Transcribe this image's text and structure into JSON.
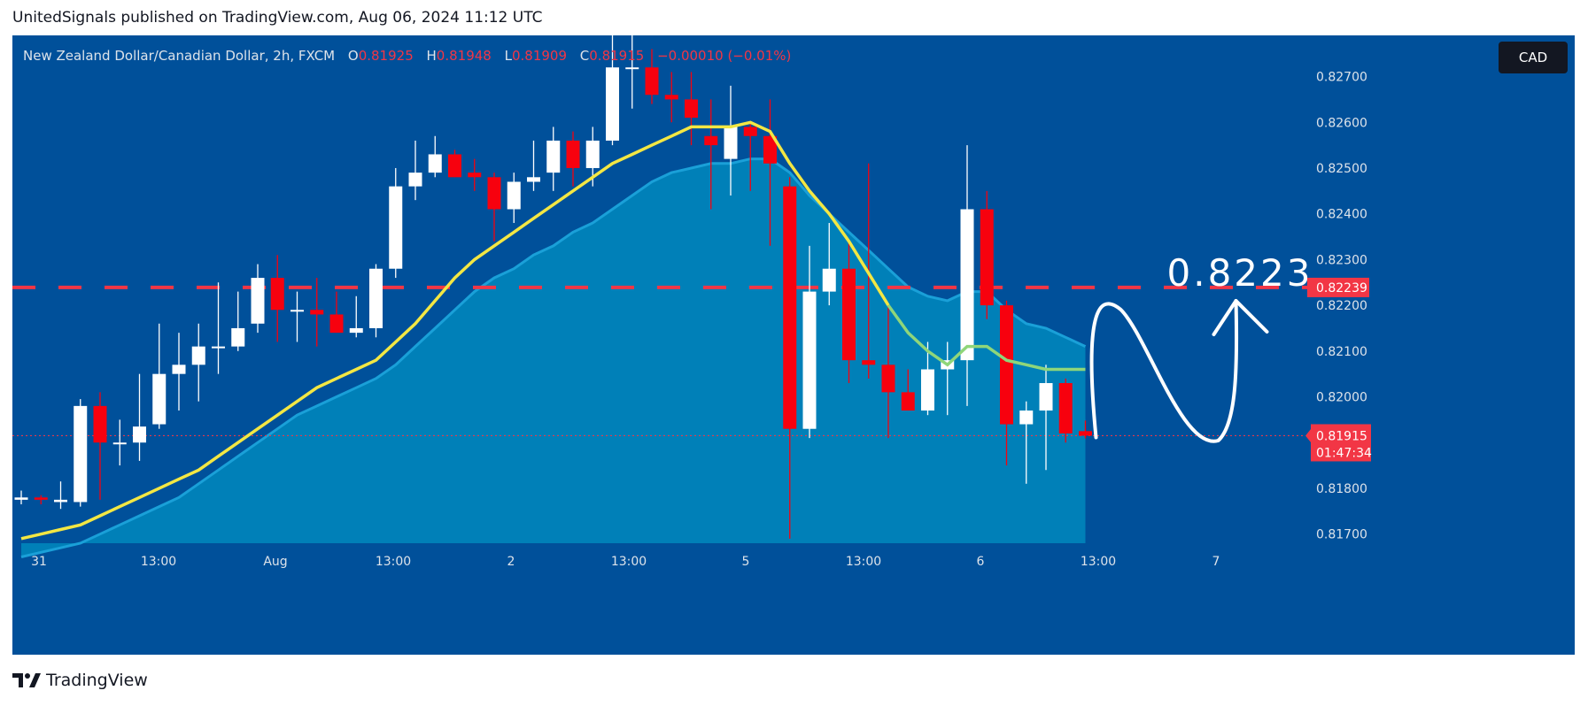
{
  "header": {
    "publisher_line": "UnitedSignals published on TradingView.com, Aug 06, 2024 11:12 UTC"
  },
  "symbol_bar": {
    "name": "New Zealand Dollar/Canadian Dollar, 2h, FXCM",
    "open_label": "O",
    "open": "0.81925",
    "high_label": "H",
    "high": "0.81948",
    "low_label": "L",
    "low": "0.81909",
    "close_label": "C",
    "close": "0.81915",
    "change": "−0.00010 (−0.01%)"
  },
  "currency_badge": "CAD",
  "footer": {
    "brand": "TradingView"
  },
  "colors": {
    "background": "#00509a",
    "up_candle": "#ffffff",
    "down_candle": "#f7010e",
    "ema_fast": "#f3e743",
    "ema_fast_late": "#8fd67a",
    "envelope_fill": "#0083b9",
    "envelope_line": "#1aa0d8",
    "level_line": "#f23645",
    "price_label": "#f23645"
  },
  "chart_data": {
    "type": "candlestick",
    "x_tick_labels": [
      "31",
      "13:00",
      "Aug",
      "13:00",
      "2",
      "13:00",
      "5",
      "13:00",
      "6",
      "13:00",
      "7"
    ],
    "y_tick_labels": [
      "0.82700",
      "0.82600",
      "0.82500",
      "0.82400",
      "0.82300",
      "0.82200",
      "0.82100",
      "0.82000",
      "0.81800",
      "0.81700"
    ],
    "y_ticks": [
      0.827,
      0.826,
      0.825,
      0.824,
      0.823,
      0.822,
      0.821,
      0.82,
      0.818,
      0.817
    ],
    "ylim": [
      0.8168,
      0.8279
    ],
    "level": {
      "value": 0.82239,
      "label": "0.82239"
    },
    "annotation": {
      "text": "0.8223",
      "projection": "down then up toward 0.8223"
    },
    "last_price": {
      "value": 0.81915,
      "label": "0.81915",
      "countdown": "01:47:34"
    },
    "candles": [
      {
        "o": 0.81775,
        "h": 0.81795,
        "l": 0.81765,
        "c": 0.8178
      },
      {
        "o": 0.8178,
        "h": 0.81785,
        "l": 0.81765,
        "c": 0.81775
      },
      {
        "o": 0.8177,
        "h": 0.81815,
        "l": 0.81755,
        "c": 0.81775
      },
      {
        "o": 0.8177,
        "h": 0.81995,
        "l": 0.8176,
        "c": 0.8198
      },
      {
        "o": 0.8198,
        "h": 0.8201,
        "l": 0.81775,
        "c": 0.819
      },
      {
        "o": 0.819,
        "h": 0.8195,
        "l": 0.8185,
        "c": 0.819
      },
      {
        "o": 0.819,
        "h": 0.8205,
        "l": 0.8186,
        "c": 0.81935
      },
      {
        "o": 0.8194,
        "h": 0.8216,
        "l": 0.8193,
        "c": 0.8205
      },
      {
        "o": 0.8205,
        "h": 0.8214,
        "l": 0.8197,
        "c": 0.8207
      },
      {
        "o": 0.8207,
        "h": 0.8216,
        "l": 0.8199,
        "c": 0.8211
      },
      {
        "o": 0.8211,
        "h": 0.8225,
        "l": 0.8205,
        "c": 0.8211
      },
      {
        "o": 0.8211,
        "h": 0.8223,
        "l": 0.821,
        "c": 0.8215
      },
      {
        "o": 0.8216,
        "h": 0.8229,
        "l": 0.8214,
        "c": 0.8226
      },
      {
        "o": 0.8226,
        "h": 0.8231,
        "l": 0.8212,
        "c": 0.8219
      },
      {
        "o": 0.8219,
        "h": 0.8223,
        "l": 0.8212,
        "c": 0.8219
      },
      {
        "o": 0.8219,
        "h": 0.8226,
        "l": 0.8211,
        "c": 0.8218
      },
      {
        "o": 0.8218,
        "h": 0.8223,
        "l": 0.8214,
        "c": 0.8214
      },
      {
        "o": 0.8214,
        "h": 0.8222,
        "l": 0.8213,
        "c": 0.8215
      },
      {
        "o": 0.8215,
        "h": 0.8229,
        "l": 0.8213,
        "c": 0.8228
      },
      {
        "o": 0.8228,
        "h": 0.825,
        "l": 0.8226,
        "c": 0.8246
      },
      {
        "o": 0.8246,
        "h": 0.8256,
        "l": 0.8243,
        "c": 0.8249
      },
      {
        "o": 0.8249,
        "h": 0.8257,
        "l": 0.8248,
        "c": 0.8253
      },
      {
        "o": 0.8253,
        "h": 0.8254,
        "l": 0.8248,
        "c": 0.8248
      },
      {
        "o": 0.8249,
        "h": 0.8252,
        "l": 0.8245,
        "c": 0.8248
      },
      {
        "o": 0.8248,
        "h": 0.8249,
        "l": 0.8234,
        "c": 0.8241
      },
      {
        "o": 0.8241,
        "h": 0.8249,
        "l": 0.8238,
        "c": 0.8247
      },
      {
        "o": 0.8247,
        "h": 0.8256,
        "l": 0.8245,
        "c": 0.8248
      },
      {
        "o": 0.8249,
        "h": 0.8259,
        "l": 0.8245,
        "c": 0.8256
      },
      {
        "o": 0.8256,
        "h": 0.8258,
        "l": 0.8246,
        "c": 0.825
      },
      {
        "o": 0.825,
        "h": 0.8259,
        "l": 0.8246,
        "c": 0.8256
      },
      {
        "o": 0.8256,
        "h": 0.828,
        "l": 0.8255,
        "c": 0.8272
      },
      {
        "o": 0.8272,
        "h": 0.8281,
        "l": 0.8263,
        "c": 0.8272
      },
      {
        "o": 0.8272,
        "h": 0.8276,
        "l": 0.8264,
        "c": 0.8266
      },
      {
        "o": 0.8266,
        "h": 0.8271,
        "l": 0.826,
        "c": 0.8265
      },
      {
        "o": 0.8265,
        "h": 0.8271,
        "l": 0.8255,
        "c": 0.8261
      },
      {
        "o": 0.8257,
        "h": 0.8265,
        "l": 0.8241,
        "c": 0.8255
      },
      {
        "o": 0.8252,
        "h": 0.8268,
        "l": 0.8244,
        "c": 0.8259
      },
      {
        "o": 0.8259,
        "h": 0.826,
        "l": 0.8245,
        "c": 0.8257
      },
      {
        "o": 0.8257,
        "h": 0.8265,
        "l": 0.8233,
        "c": 0.8251
      },
      {
        "o": 0.8246,
        "h": 0.8248,
        "l": 0.8169,
        "c": 0.8193
      },
      {
        "o": 0.8193,
        "h": 0.8233,
        "l": 0.8191,
        "c": 0.8223
      },
      {
        "o": 0.8223,
        "h": 0.8238,
        "l": 0.822,
        "c": 0.8228
      },
      {
        "o": 0.8228,
        "h": 0.8234,
        "l": 0.8203,
        "c": 0.8208
      },
      {
        "o": 0.8208,
        "h": 0.8251,
        "l": 0.8204,
        "c": 0.8207
      },
      {
        "o": 0.8207,
        "h": 0.822,
        "l": 0.8191,
        "c": 0.8201
      },
      {
        "o": 0.8201,
        "h": 0.8206,
        "l": 0.8197,
        "c": 0.8197
      },
      {
        "o": 0.8197,
        "h": 0.8212,
        "l": 0.8196,
        "c": 0.8206
      },
      {
        "o": 0.8206,
        "h": 0.8212,
        "l": 0.8196,
        "c": 0.8208
      },
      {
        "o": 0.8208,
        "h": 0.8255,
        "l": 0.8198,
        "c": 0.8241
      },
      {
        "o": 0.8241,
        "h": 0.8245,
        "l": 0.8217,
        "c": 0.822
      },
      {
        "o": 0.822,
        "h": 0.8221,
        "l": 0.8185,
        "c": 0.8194
      },
      {
        "o": 0.8194,
        "h": 0.8199,
        "l": 0.8181,
        "c": 0.8197
      },
      {
        "o": 0.8197,
        "h": 0.8207,
        "l": 0.8184,
        "c": 0.8203
      },
      {
        "o": 0.8203,
        "h": 0.8204,
        "l": 0.819,
        "c": 0.8192
      },
      {
        "o": 0.81925,
        "h": 0.81948,
        "l": 0.81909,
        "c": 0.81915
      }
    ],
    "ema_fast": [
      0.8169,
      0.817,
      0.8171,
      0.8172,
      0.8174,
      0.8176,
      0.8178,
      0.818,
      0.8182,
      0.8184,
      0.8187,
      0.819,
      0.8193,
      0.8196,
      0.8199,
      0.8202,
      0.8204,
      0.8206,
      0.8208,
      0.8212,
      0.8216,
      0.8221,
      0.8226,
      0.823,
      0.8233,
      0.8236,
      0.8239,
      0.8242,
      0.8245,
      0.8248,
      0.8251,
      0.8253,
      0.8255,
      0.8257,
      0.8259,
      0.8259,
      0.8259,
      0.826,
      0.8258,
      0.8251,
      0.8245,
      0.824,
      0.8234,
      0.8227,
      0.822,
      0.8214,
      0.821,
      0.8207,
      0.8211,
      0.8211,
      0.8208,
      0.8207,
      0.8206,
      0.8206,
      0.8206
    ],
    "envelope": [
      0.8165,
      0.8166,
      0.8167,
      0.8168,
      0.817,
      0.8172,
      0.8174,
      0.8176,
      0.8178,
      0.8181,
      0.8184,
      0.8187,
      0.819,
      0.8193,
      0.8196,
      0.8198,
      0.82,
      0.8202,
      0.8204,
      0.8207,
      0.8211,
      0.8215,
      0.8219,
      0.8223,
      0.8226,
      0.8228,
      0.8231,
      0.8233,
      0.8236,
      0.8238,
      0.8241,
      0.8244,
      0.8247,
      0.8249,
      0.825,
      0.8251,
      0.8251,
      0.8252,
      0.8252,
      0.8249,
      0.8244,
      0.824,
      0.8236,
      0.8232,
      0.8228,
      0.8224,
      0.8222,
      0.8221,
      0.8223,
      0.8223,
      0.8219,
      0.8216,
      0.8215,
      0.8213,
      0.8211
    ]
  }
}
